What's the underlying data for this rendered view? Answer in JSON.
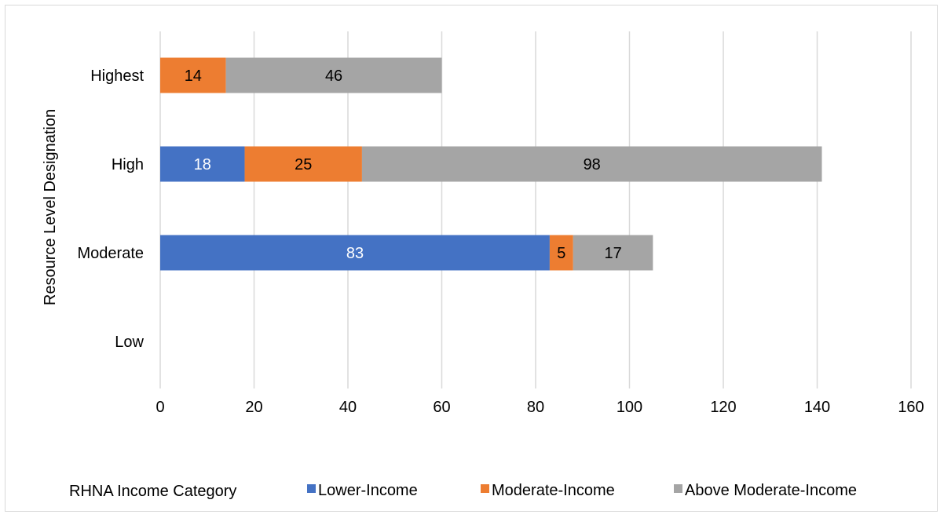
{
  "chart_data": {
    "type": "bar",
    "orientation": "horizontal",
    "stacked": true,
    "title": "",
    "xlabel": "",
    "ylabel": "Resource Level Designation",
    "categories": [
      "Highest",
      "High",
      "Moderate",
      "Low"
    ],
    "xlim": [
      0,
      160
    ],
    "xticks": [
      0,
      20,
      40,
      60,
      80,
      100,
      120,
      140,
      160
    ],
    "grid": true,
    "legend_title": "RHNA Income Category",
    "legend_position": "bottom",
    "series": [
      {
        "name": "Lower-Income",
        "color": "#4472c4",
        "label_color": "#ffffff",
        "values": [
          0,
          18,
          83,
          0
        ]
      },
      {
        "name": "Moderate-Income",
        "color": "#ed7d31",
        "label_color": "#000000",
        "values": [
          14,
          25,
          5,
          0
        ]
      },
      {
        "name": "Above Moderate-Income",
        "color": "#a5a5a5",
        "label_color": "#000000",
        "values": [
          46,
          98,
          17,
          0
        ]
      }
    ]
  }
}
